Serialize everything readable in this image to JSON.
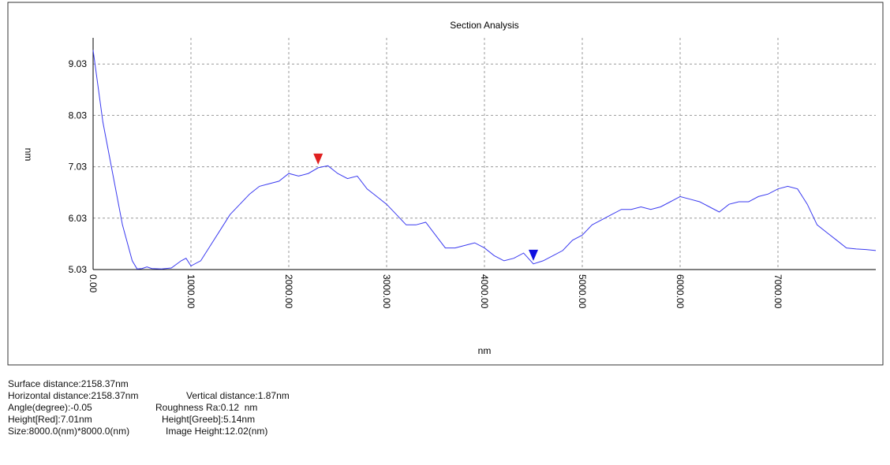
{
  "chart_data": {
    "type": "line",
    "title": "Section Analysis",
    "x_label": "nm",
    "y_label": "nm",
    "color": "#3a3af0",
    "x": [
      0,
      100,
      200,
      300,
      400,
      450,
      500,
      550,
      600,
      700,
      800,
      900,
      950,
      1000,
      1100,
      1200,
      1300,
      1400,
      1500,
      1600,
      1700,
      1800,
      1900,
      2000,
      2100,
      2200,
      2300,
      2400,
      2500,
      2600,
      2700,
      2800,
      2900,
      3000,
      3100,
      3200,
      3300,
      3400,
      3500,
      3600,
      3700,
      3800,
      3900,
      4000,
      4100,
      4200,
      4300,
      4400,
      4500,
      4600,
      4700,
      4800,
      4900,
      5000,
      5100,
      5200,
      5300,
      5400,
      5500,
      5600,
      5700,
      5800,
      5900,
      6000,
      6100,
      6200,
      6300,
      6400,
      6500,
      6600,
      6700,
      6800,
      6900,
      7000,
      7100,
      7200,
      7300,
      7400,
      7500,
      7600,
      7700,
      7800,
      7900,
      8000
    ],
    "values": [
      9.3,
      7.9,
      6.9,
      5.9,
      5.2,
      5.04,
      5.05,
      5.08,
      5.05,
      5.04,
      5.06,
      5.2,
      5.25,
      5.1,
      5.2,
      5.5,
      5.8,
      6.1,
      6.3,
      6.5,
      6.65,
      6.7,
      6.75,
      6.9,
      6.85,
      6.9,
      7.01,
      7.05,
      6.9,
      6.8,
      6.85,
      6.6,
      6.45,
      6.3,
      6.1,
      5.9,
      5.9,
      5.95,
      5.7,
      5.45,
      5.45,
      5.5,
      5.55,
      5.45,
      5.3,
      5.2,
      5.25,
      5.35,
      5.14,
      5.2,
      5.3,
      5.4,
      5.6,
      5.7,
      5.9,
      6.0,
      6.1,
      6.2,
      6.2,
      6.25,
      6.2,
      6.25,
      6.35,
      6.45,
      6.4,
      6.35,
      6.25,
      6.15,
      6.3,
      6.35,
      6.35,
      6.45,
      6.5,
      6.6,
      6.65,
      6.6,
      6.3,
      5.9,
      5.75,
      5.6,
      5.45,
      5.43,
      5.42,
      5.4
    ],
    "xlim": [
      0,
      8000
    ],
    "ylim": [
      5.03,
      9.54
    ],
    "xticks": [
      {
        "value": 0,
        "label": "0.00"
      },
      {
        "value": 1000,
        "label": "1000.00"
      },
      {
        "value": 2000,
        "label": "2000.00"
      },
      {
        "value": 3000,
        "label": "3000.00"
      },
      {
        "value": 4000,
        "label": "4000.00"
      },
      {
        "value": 5000,
        "label": "5000.00"
      },
      {
        "value": 6000,
        "label": "6000.00"
      },
      {
        "value": 7000,
        "label": "7000.00"
      }
    ],
    "yticks": [
      5.03,
      6.03,
      7.03,
      8.03,
      9.03
    ],
    "grid": true,
    "cursors": [
      {
        "x": 2300,
        "y": 7.01,
        "color": "#e02020"
      },
      {
        "x": 4500,
        "y": 5.14,
        "color": "#1010e0"
      }
    ]
  },
  "info": [
    [
      "Surface distance:2158.37nm"
    ],
    [
      "Horizontal distance:2158.37nm",
      "Vertical distance:1.87nm"
    ],
    [
      "Angle(degree):-0.05",
      "Roughness Ra:0.12  nm"
    ],
    [
      "Height[Red]:7.01nm",
      "Height[Greeb]:5.14nm"
    ],
    [
      "Size:8000.0(nm)*8000.0(nm)",
      "Image Height:12.02(nm)"
    ]
  ]
}
